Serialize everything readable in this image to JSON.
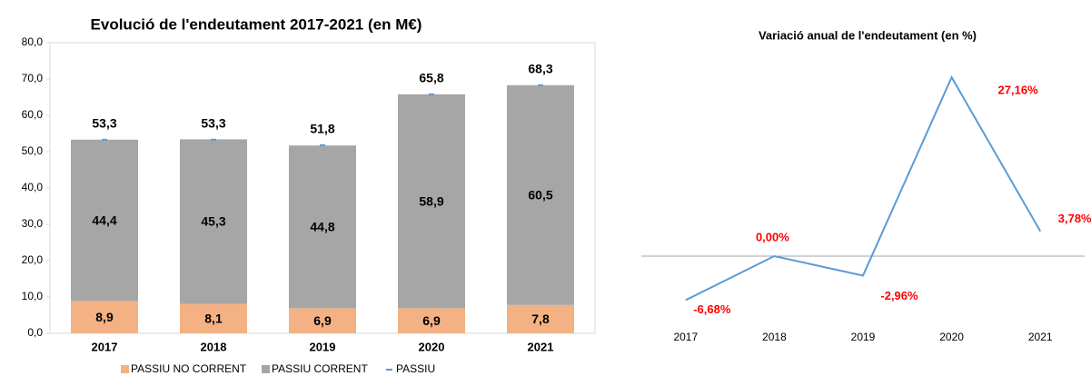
{
  "chart_data": [
    {
      "type": "bar",
      "stacked": true,
      "title": "Evolució de  l'endeutament 2017-2021 (en M€)",
      "categories": [
        "2017",
        "2018",
        "2019",
        "2020",
        "2021"
      ],
      "series": [
        {
          "name": "PASSIU NO CORRENT",
          "color": "#f4b183",
          "values": [
            8.9,
            8.1,
            6.9,
            6.9,
            7.8
          ],
          "value_labels": [
            "8,9",
            "8,1",
            "6,9",
            "6,9",
            "7,8"
          ]
        },
        {
          "name": "PASSIU CORRENT",
          "color": "#a6a6a6",
          "values": [
            44.4,
            45.3,
            44.8,
            58.9,
            60.5
          ],
          "value_labels": [
            "44,4",
            "45,3",
            "44,8",
            "58,9",
            "60,5"
          ]
        },
        {
          "name": "PASSIU",
          "type": "line",
          "color": "#5b9bd5",
          "values": [
            53.3,
            53.3,
            51.8,
            65.8,
            68.3
          ],
          "value_labels": [
            "53,3",
            "53,3",
            "51,8",
            "65,8",
            "68,3"
          ]
        }
      ],
      "ylim": [
        0,
        80
      ],
      "yticks": [
        {
          "value": 0,
          "label": "0,0"
        },
        {
          "value": 10,
          "label": "10,0"
        },
        {
          "value": 20,
          "label": "20,0"
        },
        {
          "value": 30,
          "label": "30,0"
        },
        {
          "value": 40,
          "label": "40,0"
        },
        {
          "value": 50,
          "label": "50,0"
        },
        {
          "value": 60,
          "label": "60,0"
        },
        {
          "value": 70,
          "label": "70,0"
        },
        {
          "value": 80,
          "label": "80,0"
        }
      ],
      "legend": "bottom"
    },
    {
      "type": "line",
      "title": "Variació anual de l'endeutament (en %)",
      "categories": [
        "2017",
        "2018",
        "2019",
        "2020",
        "2021"
      ],
      "values": [
        -6.68,
        0,
        -2.96,
        27.16,
        3.78
      ],
      "value_labels": [
        "-6,68%",
        "0,00%",
        "-2,96%",
        "27,16%",
        "3,78%"
      ],
      "color": "#5b9bd5",
      "label_color": "#ff0000",
      "ylim": [
        -10,
        30
      ]
    }
  ]
}
